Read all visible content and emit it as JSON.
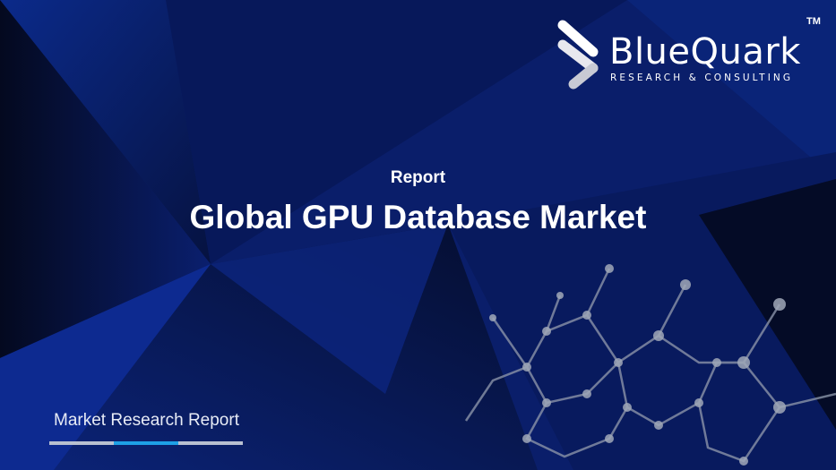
{
  "logo": {
    "brand": "BlueQuark",
    "tagline": "RESEARCH & CONSULTING",
    "trademark": "TM"
  },
  "hero": {
    "kicker": "Report",
    "title": "Global GPU Database Market"
  },
  "footer": {
    "label": "Market Research Report"
  },
  "colors": {
    "background": "#0a1a5c",
    "accent": "#1ea0e6",
    "bar_gray": "#b8c0d0"
  }
}
